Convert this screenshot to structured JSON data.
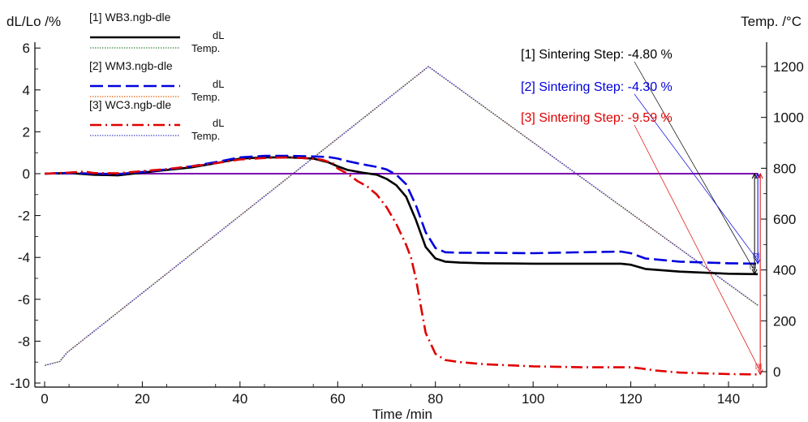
{
  "chart_data": {
    "type": "line",
    "xlabel": "Time /min",
    "ylabel_left": "dL/Lo /%",
    "ylabel_right": "Temp. /°C",
    "xlim": [
      -1,
      146
    ],
    "ylim_left": [
      -10.2,
      6.2
    ],
    "ylim_right": [
      -10,
      1260
    ],
    "x_ticks": [
      "0",
      "20",
      "40",
      "60",
      "80",
      "100",
      "120",
      "140"
    ],
    "y_left_ticks": [
      "6",
      "4",
      "2",
      "0",
      "-2",
      "-4",
      "-6",
      "-8",
      "-10"
    ],
    "y_right_ticks": [
      "1200",
      "1000",
      "800",
      "600",
      "400",
      "200",
      "0"
    ],
    "grid": false,
    "legend": {
      "placement": "top-left",
      "entries": [
        {
          "file": "[1] WB3.ngb-dle",
          "dl_label": "dL",
          "temp_label": "Temp.",
          "color": "#000000"
        },
        {
          "file": "[2] WM3.ngb-dle",
          "dl_label": "dL",
          "temp_label": "Temp.",
          "color": "#0000dd"
        },
        {
          "file": "[3] WC3.ngb-dle",
          "dl_label": "dL",
          "temp_label": "Temp.",
          "color": "#e00000"
        }
      ]
    },
    "annotations": [
      {
        "text": "[1] Sintering Step: -4.80 %",
        "color": "#000000"
      },
      {
        "text": "[2] Sintering Step: -4.30 %",
        "color": "#0000dd"
      },
      {
        "text": "[3] Sintering Step: -9.59 %",
        "color": "#e00000"
      }
    ],
    "series": [
      {
        "name": "dL",
        "file": "[1] WB3.ngb-dle",
        "axis": "left",
        "color": "#000000",
        "dash": "solid",
        "x": [
          0,
          5,
          10,
          15,
          20,
          25,
          30,
          35,
          40,
          45,
          50,
          55,
          58,
          60,
          62,
          65,
          68,
          70,
          72,
          74,
          76,
          78,
          80,
          82,
          85,
          90,
          100,
          110,
          118,
          120,
          123,
          130,
          140,
          146
        ],
        "y": [
          0,
          0.03,
          -0.05,
          -0.08,
          0.05,
          0.18,
          0.3,
          0.5,
          0.72,
          0.78,
          0.78,
          0.72,
          0.55,
          0.35,
          0.18,
          0.05,
          -0.05,
          -0.25,
          -0.55,
          -1.1,
          -2.2,
          -3.5,
          -4.05,
          -4.2,
          -4.25,
          -4.28,
          -4.3,
          -4.3,
          -4.3,
          -4.35,
          -4.55,
          -4.68,
          -4.78,
          -4.8
        ]
      },
      {
        "name": "dL",
        "file": "[2] WM3.ngb-dle",
        "axis": "left",
        "color": "#0000dd",
        "dash": "long-dash",
        "x": [
          0,
          5,
          10,
          15,
          20,
          25,
          30,
          35,
          40,
          45,
          50,
          55,
          58,
          60,
          62,
          65,
          68,
          70,
          72,
          74,
          76,
          78,
          80,
          82,
          85,
          90,
          100,
          110,
          118,
          120,
          123,
          130,
          140,
          146
        ],
        "y": [
          0,
          0.04,
          0,
          -0.02,
          0.08,
          0.2,
          0.35,
          0.55,
          0.78,
          0.85,
          0.85,
          0.82,
          0.8,
          0.72,
          0.6,
          0.45,
          0.32,
          0.2,
          -0.05,
          -0.5,
          -1.5,
          -2.8,
          -3.55,
          -3.75,
          -3.78,
          -3.78,
          -3.8,
          -3.75,
          -3.72,
          -3.8,
          -4.05,
          -4.2,
          -4.28,
          -4.3
        ]
      },
      {
        "name": "dL",
        "file": "[3] WC3.ngb-dle",
        "axis": "left",
        "color": "#e00000",
        "dash": "dash-dot",
        "x": [
          0,
          5,
          8,
          10,
          15,
          20,
          25,
          30,
          35,
          40,
          45,
          50,
          55,
          57,
          59,
          60,
          62,
          64,
          66,
          68,
          70,
          72,
          74,
          75,
          76,
          77,
          78,
          80,
          82,
          85,
          90,
          100,
          110,
          120,
          122,
          125,
          130,
          140,
          146
        ],
        "y": [
          0,
          0.05,
          0.1,
          0.03,
          0.02,
          0.12,
          0.22,
          0.35,
          0.5,
          0.68,
          0.75,
          0.78,
          0.72,
          0.65,
          0.5,
          0.25,
          0.0,
          -0.35,
          -0.6,
          -1.0,
          -1.6,
          -2.4,
          -3.4,
          -4.0,
          -5.0,
          -6.3,
          -7.6,
          -8.6,
          -8.9,
          -9.0,
          -9.1,
          -9.2,
          -9.25,
          -9.25,
          -9.3,
          -9.4,
          -9.5,
          -9.57,
          -9.59
        ]
      },
      {
        "name": "Temp.",
        "file": "[1] WB3.ngb-dle",
        "axis": "right",
        "color": "#2e7d32",
        "dash": "dotted",
        "x": [
          0,
          3,
          4.5,
          78.5,
          146
        ],
        "y": [
          25,
          40,
          75,
          1200,
          260
        ]
      },
      {
        "name": "Temp.",
        "file": "[2] WM3.ngb-dle",
        "axis": "right",
        "color": "#e85a00",
        "dash": "dotted",
        "x": [
          0,
          3,
          4.5,
          78.5,
          146
        ],
        "y": [
          25,
          40,
          75,
          1200,
          260
        ]
      },
      {
        "name": "Temp.",
        "file": "[3] WC3.ngb-dle",
        "axis": "right",
        "color": "#3a3ac8",
        "dash": "dotted",
        "x": [
          0,
          3,
          4.5,
          78.5,
          146
        ],
        "y": [
          25,
          40,
          75,
          1200,
          260
        ]
      }
    ],
    "reference_line": {
      "axis": "left",
      "y": 0,
      "color": "#7b00b0"
    },
    "step_markers": [
      {
        "label": "[1]",
        "x": 146,
        "y1": 0,
        "y2": -4.8,
        "color": "#000000"
      },
      {
        "label": "[2]",
        "x": 146,
        "y1": 0,
        "y2": -4.3,
        "color": "#0000dd"
      },
      {
        "label": "[3]",
        "x": 146,
        "y1": 0,
        "y2": -9.59,
        "color": "#e00000"
      }
    ]
  }
}
